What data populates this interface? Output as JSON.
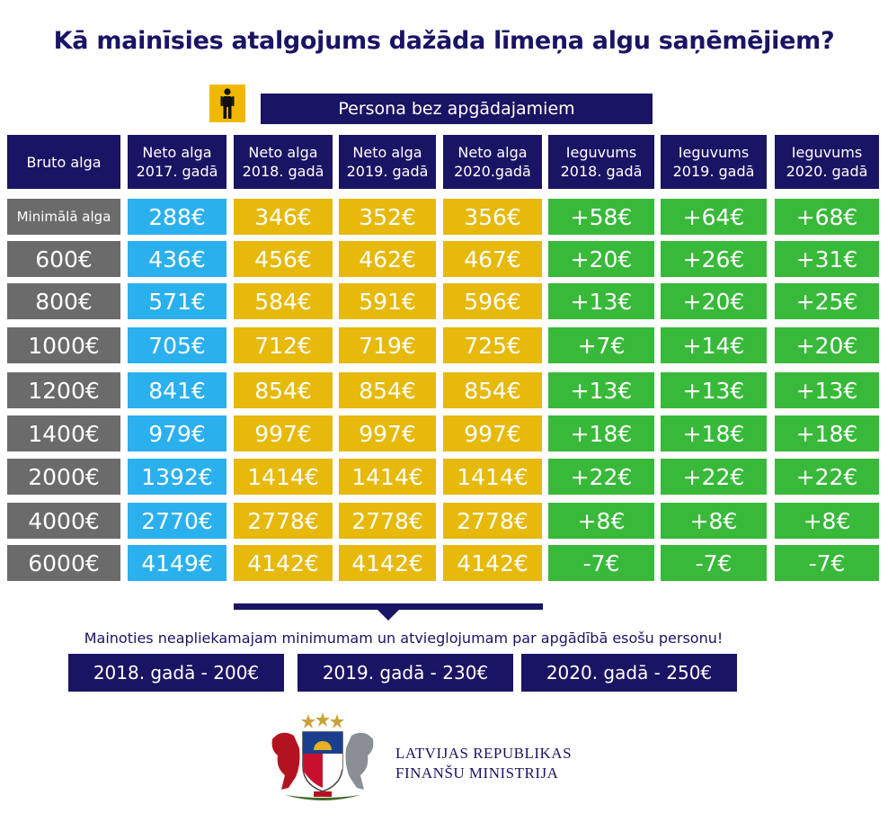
{
  "title": "Kā mainīsies atalgojums dažāda līmeņa algu saņēmējiem?",
  "persona_label": "Persona bez apgādajamiem",
  "icons": {
    "person": "person-icon",
    "coat_of_arms": "coat-of-arms-icon"
  },
  "colors": {
    "navy": "#1a1464",
    "gray": "#6b6b6b",
    "blue": "#2bb0ee",
    "yellow": "#e6b90b",
    "green": "#38b93a"
  },
  "table": {
    "headers": [
      "Bruto alga",
      "Neto alga 2017. gadā",
      "Neto alga 2018. gadā",
      "Neto alga 2019. gadā",
      "Neto alga 2020.gadā",
      "Ieguvums 2018. gadā",
      "Ieguvums 2019. gadā",
      "Ieguvums 2020. gadā"
    ],
    "rows": [
      [
        "Minimālā alga",
        "288€",
        "346€",
        "352€",
        "356€",
        "+58€",
        "+64€",
        "+68€"
      ],
      [
        "600€",
        "436€",
        "456€",
        "462€",
        "467€",
        "+20€",
        "+26€",
        "+31€"
      ],
      [
        "800€",
        "571€",
        "584€",
        "591€",
        "596€",
        "+13€",
        "+20€",
        "+25€"
      ],
      [
        "1000€",
        "705€",
        "712€",
        "719€",
        "725€",
        "+7€",
        "+14€",
        "+20€"
      ],
      [
        "1200€",
        "841€",
        "854€",
        "854€",
        "854€",
        "+13€",
        "+13€",
        "+13€"
      ],
      [
        "1400€",
        "979€",
        "997€",
        "997€",
        "997€",
        "+18€",
        "+18€",
        "+18€"
      ],
      [
        "2000€",
        "1392€",
        "1414€",
        "1414€",
        "1414€",
        "+22€",
        "+22€",
        "+22€"
      ],
      [
        "4000€",
        "2770€",
        "2778€",
        "2778€",
        "2778€",
        "+8€",
        "+8€",
        "+8€"
      ],
      [
        "6000€",
        "4149€",
        "4142€",
        "4142€",
        "4142€",
        "-7€",
        "-7€",
        "-7€"
      ]
    ]
  },
  "note": "Mainoties neapliekamajam minimumam un atvieglojumam par apgādībā esošu personu!",
  "years": [
    "2018. gadā - 200€",
    "2019. gadā - 230€",
    "2020. gadā - 250€"
  ],
  "ministry": {
    "line1": "LATVIJAS REPUBLIKAS",
    "line2": "FINANŠU MINISTRIJA"
  }
}
